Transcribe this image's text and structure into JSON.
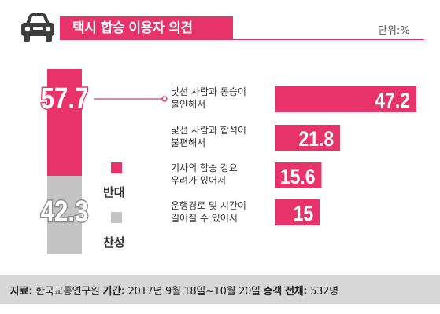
{
  "header": {
    "title": "택시 합승 이용자 의견",
    "unit": "단위:%",
    "icon": "car-icon",
    "accent_color": "#e8336a"
  },
  "chart_data": [
    {
      "type": "bar",
      "stacked": true,
      "orientation": "vertical",
      "categories": [
        "반대",
        "찬성"
      ],
      "values": [
        57.7,
        42.3
      ],
      "colors": [
        "#e8336a",
        "#c4c4c4"
      ],
      "legend": [
        "반대",
        "찬성"
      ],
      "ylim": [
        0,
        100
      ]
    },
    {
      "type": "bar",
      "orientation": "horizontal",
      "categories": [
        [
          "낯선 사람과 동승이",
          "불안해서"
        ],
        [
          "낯선 사람과 합석이",
          "불편해서"
        ],
        [
          "기사의 합승 강요",
          "우려가 있어서"
        ],
        [
          "운행경로 및 시간이",
          "길어질 수 있어서"
        ]
      ],
      "values": [
        47.2,
        21.8,
        15.6,
        15
      ],
      "value_labels": [
        "47.2",
        "21.8",
        "15.6",
        "15"
      ],
      "color": "#e8336a",
      "xlim": [
        0,
        47.2
      ]
    }
  ],
  "footer": {
    "source_label": "자료:",
    "source": "한국교통연구원",
    "period_label": "기간:",
    "period": "2017년 9월 18일~10월 20일",
    "total_label": "승객 전체:",
    "total": "532명"
  }
}
